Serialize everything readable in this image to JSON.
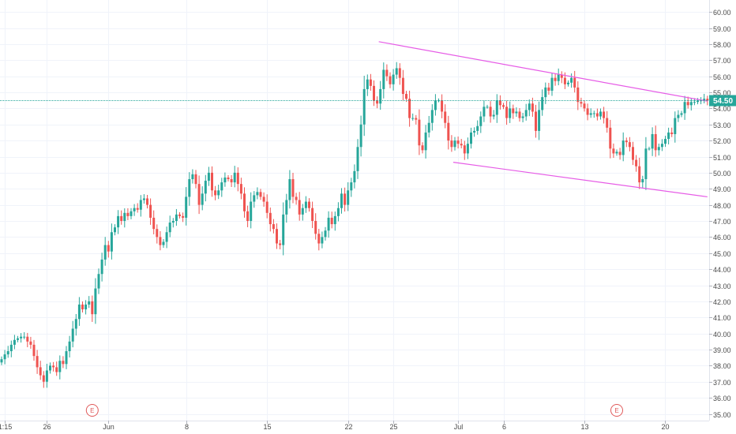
{
  "chart_data": {
    "type": "candlestick",
    "title": "",
    "xlabel": "",
    "ylabel": "",
    "ylim": [
      34.7,
      60.5
    ],
    "grid": true,
    "y_ticks": [
      "35.00",
      "36.00",
      "37.00",
      "38.00",
      "39.00",
      "40.00",
      "41.00",
      "42.00",
      "43.00",
      "44.00",
      "45.00",
      "46.00",
      "47.00",
      "48.00",
      "49.00",
      "50.00",
      "51.00",
      "52.00",
      "53.00",
      "54.00",
      "55.00",
      "56.00",
      "57.00",
      "58.00",
      "59.00",
      "60.00"
    ],
    "x_ticks": [
      {
        "label": "1:15",
        "bar": 1
      },
      {
        "label": "26",
        "bar": 14
      },
      {
        "label": "Jun",
        "bar": 33
      },
      {
        "label": "8",
        "bar": 57
      },
      {
        "label": "15",
        "bar": 82
      },
      {
        "label": "22",
        "bar": 107
      },
      {
        "label": "25",
        "bar": 121
      },
      {
        "label": "Jul",
        "bar": 141
      },
      {
        "label": "6",
        "bar": 155
      },
      {
        "label": "13",
        "bar": 180
      },
      {
        "label": "20",
        "bar": 205
      }
    ],
    "last_price": {
      "label": "54.50",
      "value": 54.5
    },
    "events": [
      {
        "label": "E",
        "bar": 28
      },
      {
        "label": "E",
        "bar": 190
      }
    ],
    "trendlines": [
      {
        "name": "upper channel",
        "from": {
          "bar": 116.5,
          "value": 58.15
        },
        "to": {
          "bar": 218,
          "value": 54.45
        }
      },
      {
        "name": "lower channel",
        "from": {
          "bar": 139.5,
          "value": 50.65
        },
        "to": {
          "bar": 218,
          "value": 48.5
        }
      }
    ],
    "closes": [
      38.4,
      38.7,
      38.9,
      39.3,
      39.6,
      39.7,
      39.8,
      39.8,
      39.5,
      39.3,
      38.6,
      37.9,
      37.4,
      37.0,
      37.7,
      38.0,
      37.9,
      37.6,
      38.3,
      38.1,
      38.9,
      39.5,
      40.3,
      40.9,
      41.8,
      41.5,
      41.8,
      42.0,
      41.2,
      42.8,
      43.7,
      44.6,
      45.5,
      45.1,
      46.3,
      46.6,
      47.3,
      47.0,
      47.5,
      47.3,
      47.6,
      47.8,
      47.7,
      48.3,
      48.4,
      48.0,
      47.2,
      46.5,
      46.0,
      45.5,
      45.7,
      46.3,
      46.9,
      47.0,
      47.4,
      47.3,
      47.2,
      48.5,
      49.6,
      49.9,
      49.3,
      48.0,
      48.7,
      49.5,
      50.0,
      48.9,
      48.6,
      48.9,
      49.4,
      49.7,
      49.6,
      49.4,
      50.0,
      49.3,
      48.7,
      47.6,
      47.0,
      48.2,
      48.6,
      48.8,
      48.5,
      48.2,
      47.5,
      46.8,
      46.5,
      45.6,
      45.5,
      47.4,
      48.3,
      49.6,
      48.5,
      48.3,
      47.4,
      47.8,
      48.2,
      47.8,
      47.0,
      46.2,
      45.6,
      46.0,
      46.4,
      47.2,
      46.8,
      47.3,
      47.8,
      48.7,
      48.0,
      48.9,
      49.4,
      50.1,
      51.6,
      53.0,
      55.2,
      55.8,
      55.4,
      54.5,
      54.3,
      55.2,
      56.4,
      56.0,
      55.5,
      56.1,
      56.5,
      55.9,
      54.9,
      54.6,
      53.4,
      53.4,
      53.3,
      51.7,
      51.4,
      52.5,
      53.1,
      53.9,
      54.5,
      54.5,
      53.8,
      53.1,
      52.0,
      51.6,
      52.0,
      51.8,
      51.7,
      51.2,
      51.8,
      52.5,
      52.6,
      52.9,
      53.5,
      54.1,
      54.1,
      53.5,
      53.6,
      54.5,
      54.2,
      54.1,
      53.4,
      54.0,
      53.7,
      53.8,
      53.4,
      53.5,
      53.9,
      54.3,
      53.8,
      52.6,
      53.9,
      54.7,
      55.3,
      55.1,
      55.9,
      55.7,
      56.1,
      55.9,
      55.5,
      55.6,
      55.9,
      55.3,
      54.4,
      54.3,
      54.0,
      53.6,
      53.7,
      53.7,
      53.5,
      53.8,
      53.4,
      52.8,
      51.5,
      51.2,
      51.3,
      51.1,
      52.0,
      51.9,
      51.6,
      50.8,
      50.4,
      49.4,
      49.6,
      51.5,
      51.5,
      52.4,
      51.4,
      51.6,
      51.8,
      52.1,
      52.5,
      52.4,
      53.4,
      53.6,
      53.7,
      54.4,
      54.2,
      54.4,
      54.4,
      54.5,
      54.5,
      54.6,
      54.5,
      54.5
    ],
    "colors": {
      "up": "#26a69a",
      "down": "#ef5350",
      "channel": "#e65ce6",
      "price_line": "#26a69a",
      "grid": "#f0f3fa",
      "event": "#e05a5a"
    }
  }
}
